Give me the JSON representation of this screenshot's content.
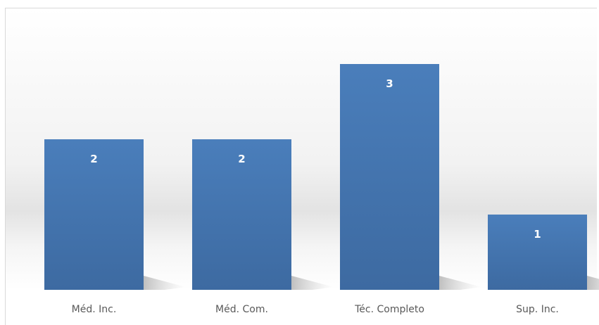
{
  "chart_data": {
    "type": "bar",
    "categories": [
      "Méd. Inc.",
      "Méd. Com.",
      "Téc. Completo",
      "Sup. Inc."
    ],
    "values": [
      2,
      2,
      3,
      1
    ],
    "data_labels": [
      "2",
      "2",
      "3",
      "1"
    ],
    "title": "",
    "xlabel": "",
    "ylabel": "",
    "ylim": [
      0,
      3
    ],
    "grid": false,
    "legend": "none",
    "bar_color": "#4a7ebb",
    "bar_color_dark": "#3d6aa1",
    "label_color": "#595959",
    "data_label_color": "#ffffff"
  }
}
